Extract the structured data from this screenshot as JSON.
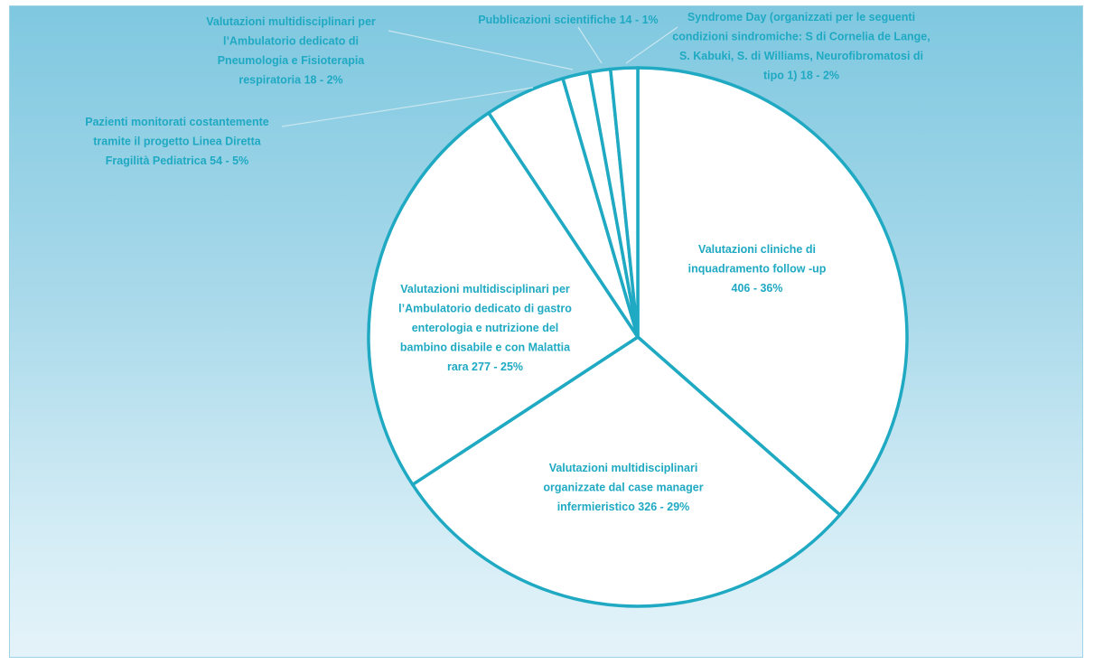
{
  "colors": {
    "accent": "#1fa9c2",
    "slice_fill": "#ffffff"
  },
  "chart_data": {
    "type": "pie",
    "start_angle_deg": 0,
    "direction": "clockwise",
    "legend": "none",
    "slices": [
      {
        "value": 406,
        "percent": 36,
        "label_lines": [
          "Valutazioni cliniche di",
          "inquadramento follow  -up",
          "406 - 36%"
        ]
      },
      {
        "value": 326,
        "percent": 29,
        "label_lines": [
          "Valutazioni multidisciplinari",
          "organizzate dal case manager",
          "infermieristico  326 - 29%"
        ]
      },
      {
        "value": 277,
        "percent": 25,
        "label_lines": [
          "Valutazioni multidisciplinari per",
          "l’Ambulatorio dedicato di gastro",
          "enterologia e nutrizione del",
          "bambino disabile e con Malattia",
          "rara 277 - 25%"
        ]
      },
      {
        "value": 54,
        "percent": 5,
        "label_lines": [
          "Pazienti monitorati costantemente",
          "tramite il progetto Linea Diretta",
          "Fragilità Pediatrica  54 - 5%"
        ]
      },
      {
        "value": 18,
        "percent": 2,
        "label_lines": [
          "Valutazioni multidisciplinari per",
          "l’Ambulatorio dedicato di",
          "Pneumologia e Fisioterapia",
          "respiratoria  18 - 2%"
        ]
      },
      {
        "value": 14,
        "percent": 1,
        "label_lines": [
          "Pubblicazioni scientifiche   14 - 1%"
        ]
      },
      {
        "value": 18,
        "percent": 2,
        "label_lines": [
          "Syndrome Day (organizzati per le seguenti",
          "condizioni sindromiche: S di Cornelia de Lange,",
          "S. Kabuki, S. di Williams, Neurofibromatosi di",
          "tipo 1)  18 - 2%"
        ]
      }
    ]
  }
}
